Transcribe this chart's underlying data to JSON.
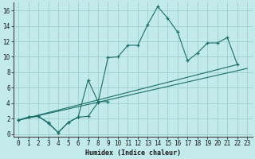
{
  "xlabel": "Humidex (Indice chaleur)",
  "bg_color": "#c2eaea",
  "grid_color": "#9ecece",
  "line_color": "#1a6e6a",
  "xlim": [
    -0.5,
    23.5
  ],
  "ylim": [
    -0.3,
    17.0
  ],
  "xticks": [
    0,
    1,
    2,
    3,
    4,
    5,
    6,
    7,
    8,
    9,
    10,
    11,
    12,
    13,
    14,
    15,
    16,
    17,
    18,
    19,
    20,
    21,
    22,
    23
  ],
  "yticks": [
    0,
    2,
    4,
    6,
    8,
    10,
    12,
    14,
    16
  ],
  "series": [
    {
      "x": [
        0,
        1,
        2,
        3,
        4,
        5,
        6,
        7,
        8,
        9,
        10,
        11,
        12,
        13,
        14,
        15,
        16,
        17,
        18,
        19,
        20,
        21,
        22
      ],
      "y": [
        1.8,
        2.2,
        2.3,
        1.4,
        0.2,
        1.5,
        2.2,
        2.3,
        4.1,
        9.9,
        10.0,
        11.5,
        11.5,
        14.2,
        16.5,
        15.0,
        13.2,
        9.5,
        10.5,
        11.8,
        11.8,
        12.5,
        9.0
      ]
    },
    {
      "x": [
        0,
        1,
        2,
        3,
        4,
        5,
        6,
        7,
        8,
        9
      ],
      "y": [
        1.8,
        2.2,
        2.3,
        1.5,
        0.2,
        1.5,
        2.2,
        7.0,
        4.2,
        4.2
      ]
    },
    {
      "x": [
        0,
        22
      ],
      "y": [
        1.8,
        9.0
      ]
    },
    {
      "x": [
        0,
        23
      ],
      "y": [
        1.8,
        8.5
      ]
    }
  ]
}
